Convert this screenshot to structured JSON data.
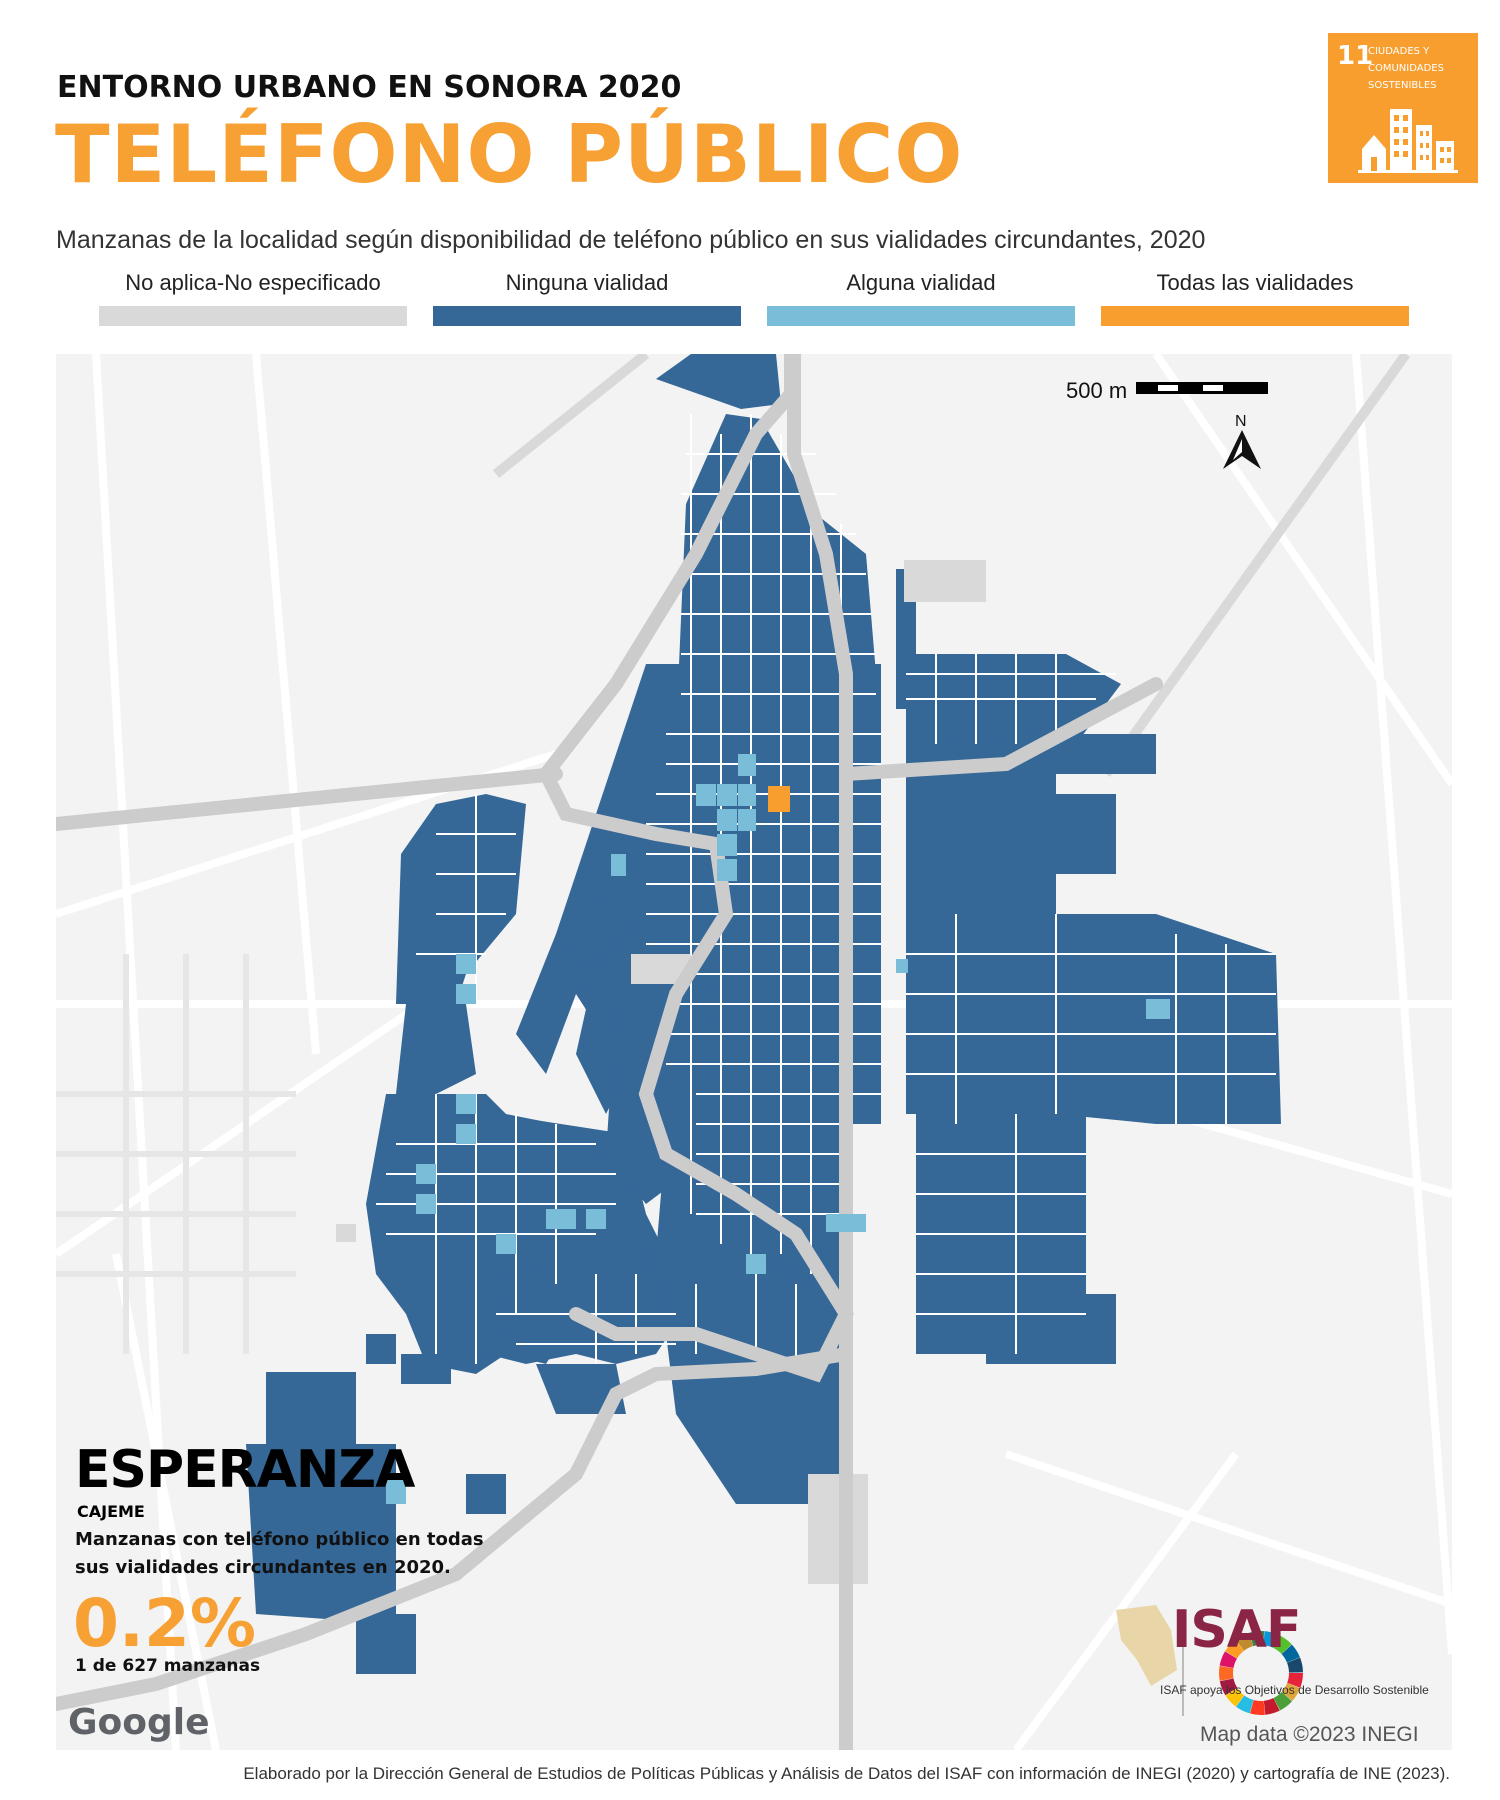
{
  "header": {
    "subtitle": "ENTORNO URBANO EN SONORA 2020",
    "title": "TELÉFONO PÚBLICO",
    "description": "Manzanas de la localidad según disponibilidad de teléfono público en sus vialidades circundantes, 2020"
  },
  "ods_badge": {
    "number": "11",
    "text_line1": "CIUDADES Y",
    "text_line2": "COMUNIDADES",
    "text_line3": "SOSTENIBLES",
    "color": "#f79e2e"
  },
  "legend": [
    {
      "label": "No aplica-No especificado",
      "color": "#d9d9d9"
    },
    {
      "label": "Ninguna vialidad",
      "color": "#356797"
    },
    {
      "label": "Alguna vialidad",
      "color": "#79bdd9"
    },
    {
      "label": "Todas las vialidades",
      "color": "#f79e2e"
    }
  ],
  "map": {
    "scale_label": "500 m",
    "north_label": "N",
    "attribution_google": "Google",
    "attribution_data": "Map data ©2023 INEGI"
  },
  "card": {
    "locality": "ESPERANZA",
    "municipality": "CAJEME",
    "description": "Manzanas con teléfono público en todas sus vialidades circundantes en 2020.",
    "percent": "0.2%",
    "count": "1 de 627 manzanas"
  },
  "isaf": {
    "logo_text": "ISAF",
    "caption": "ISAF apoya los Objetivos de Desarrollo Sostenible"
  },
  "footer": "Elaborado por la Dirección General de Estudios de Políticas Públicas y Análisis de Datos del ISAF con información de INEGI (2020) y cartografía de INE (2023)."
}
